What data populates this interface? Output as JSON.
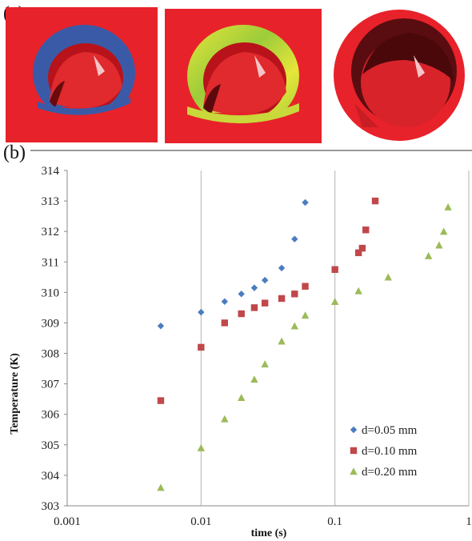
{
  "panels": {
    "a_label": "(a)",
    "b_label": "(b)"
  },
  "colors": {
    "background_red": "#e8222a",
    "ring_blue": "#3a5aa8",
    "ring_green": "#9ccc3a",
    "ring_yellow": "#e6e63a",
    "series_blue": "#4a7cc0",
    "series_red": "#c0474a",
    "series_green": "#9bbb59"
  },
  "chart_data": {
    "type": "scatter",
    "title": "",
    "xlabel": "time (s)",
    "ylabel": "Temperature (K)",
    "xscale": "log",
    "xlim": [
      0.001,
      1
    ],
    "ylim": [
      303,
      314
    ],
    "xticks": [
      "0.001",
      "0.01",
      "0.1",
      "1"
    ],
    "yticks": [
      "303",
      "304",
      "305",
      "306",
      "307",
      "308",
      "309",
      "310",
      "311",
      "312",
      "313",
      "314"
    ],
    "grid": "vertical",
    "legend_position": "bottom-right",
    "series": [
      {
        "name": "d=0.05 mm",
        "marker": "diamond",
        "color": "#4a7cc0",
        "x": [
          0.005,
          0.01,
          0.015,
          0.02,
          0.025,
          0.03,
          0.04,
          0.05,
          0.06
        ],
        "y": [
          308.9,
          309.35,
          309.7,
          309.95,
          310.15,
          310.4,
          310.8,
          311.75,
          312.95
        ]
      },
      {
        "name": "d=0.10 mm",
        "marker": "square",
        "color": "#c0474a",
        "x": [
          0.005,
          0.01,
          0.015,
          0.02,
          0.025,
          0.03,
          0.04,
          0.05,
          0.06,
          0.1,
          0.15,
          0.16,
          0.17,
          0.2
        ],
        "y": [
          306.45,
          308.2,
          309.0,
          309.3,
          309.5,
          309.65,
          309.8,
          309.95,
          310.2,
          310.75,
          311.3,
          311.45,
          312.05,
          313.0
        ]
      },
      {
        "name": "d=0.20 mm",
        "marker": "triangle",
        "color": "#9bbb59",
        "x": [
          0.005,
          0.01,
          0.015,
          0.02,
          0.025,
          0.03,
          0.04,
          0.05,
          0.06,
          0.1,
          0.15,
          0.25,
          0.5,
          0.6,
          0.65,
          0.7
        ],
        "y": [
          303.6,
          304.9,
          305.85,
          306.55,
          307.15,
          307.65,
          308.4,
          308.9,
          309.25,
          309.7,
          310.05,
          310.5,
          311.2,
          311.55,
          312.0,
          312.8
        ]
      }
    ]
  }
}
